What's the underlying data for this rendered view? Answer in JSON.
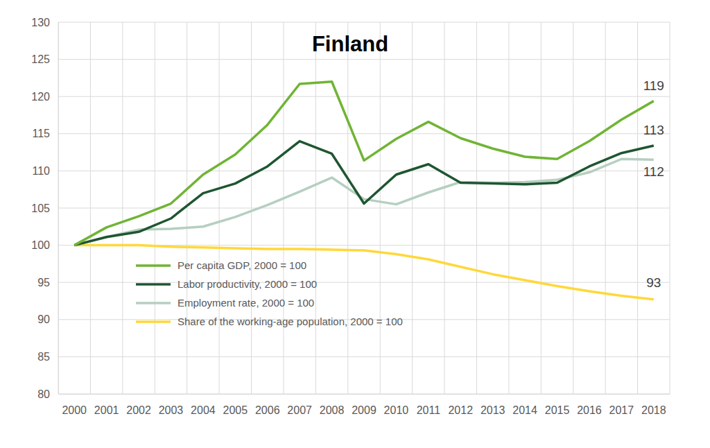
{
  "chart_data": {
    "type": "line",
    "title": "Finland",
    "categories": [
      "2000",
      "2001",
      "2002",
      "2003",
      "2004",
      "2005",
      "2006",
      "2007",
      "2008",
      "2009",
      "2010",
      "2011",
      "2012",
      "2013",
      "2014",
      "2015",
      "2016",
      "2017",
      "2018"
    ],
    "series": [
      {
        "name": "Per capita GDP, 2000 = 100",
        "color": "#70b435",
        "values": [
          100,
          102.4,
          103.9,
          105.6,
          109.5,
          112.2,
          116.2,
          121.7,
          122.0,
          111.4,
          114.3,
          116.6,
          114.4,
          113.0,
          111.9,
          111.6,
          114.0,
          116.9,
          119.4
        ],
        "value_labels": [
          null,
          null,
          null,
          null,
          null,
          null,
          null,
          null,
          null,
          null,
          null,
          null,
          null,
          null,
          null,
          null,
          null,
          null,
          "119"
        ]
      },
      {
        "name": "Labor productivity, 2000 = 100",
        "color": "#1e5631",
        "values": [
          100,
          101.1,
          101.8,
          103.6,
          107.0,
          108.3,
          110.6,
          114.0,
          112.3,
          105.6,
          109.5,
          110.9,
          108.4,
          108.3,
          108.2,
          108.4,
          110.6,
          112.4,
          113.4
        ],
        "value_labels": [
          null,
          null,
          null,
          null,
          null,
          null,
          null,
          null,
          null,
          null,
          null,
          null,
          null,
          null,
          null,
          null,
          null,
          null,
          "113"
        ]
      },
      {
        "name": "Employment rate, 2000 = 100",
        "color": "#b5cfc0",
        "values": [
          100,
          101.1,
          102.1,
          102.2,
          102.5,
          103.8,
          105.4,
          107.2,
          109.1,
          106.2,
          105.5,
          107.1,
          108.5,
          108.4,
          108.5,
          108.8,
          109.8,
          111.6,
          111.5
        ],
        "value_labels": [
          null,
          null,
          null,
          null,
          null,
          null,
          null,
          null,
          null,
          null,
          null,
          null,
          null,
          null,
          null,
          null,
          null,
          null,
          "112"
        ]
      },
      {
        "name": "Share of the working-age population, 2000 = 100",
        "color": "#ffd83a",
        "values": [
          100,
          100.0,
          100.0,
          99.8,
          99.7,
          99.6,
          99.5,
          99.5,
          99.4,
          99.3,
          98.8,
          98.1,
          97.1,
          96.1,
          95.3,
          94.5,
          93.8,
          93.2,
          92.7
        ],
        "value_labels": [
          null,
          null,
          null,
          null,
          null,
          null,
          null,
          null,
          null,
          null,
          null,
          null,
          null,
          null,
          null,
          null,
          null,
          null,
          "93"
        ]
      }
    ],
    "ylim": [
      80,
      130
    ],
    "yticks": [
      80,
      85,
      90,
      95,
      100,
      105,
      110,
      115,
      120,
      125,
      130
    ],
    "grid": true,
    "legend": "lower-left"
  }
}
